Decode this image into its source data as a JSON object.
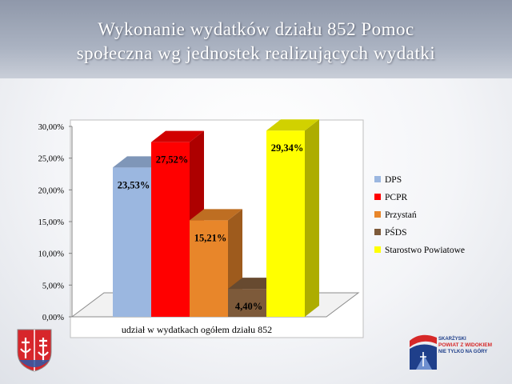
{
  "header": {
    "title_line1": "Wykonanie wydatków działu 852 Pomoc",
    "title_line2": "społeczna wg jednostek realizujących wydatki"
  },
  "logo_right": {
    "line1": "SKARŻYSKI",
    "line2": "POWIAT Z WIDOKIEM",
    "line3": "NIE TYLKO NA GÓRY"
  },
  "chart_data": {
    "type": "bar",
    "title": "",
    "xlabel": "udział w wydatkach ogółem działu 852",
    "ylabel": "",
    "ylim": [
      0,
      30
    ],
    "yticks": [
      "0,00%",
      "5,00%",
      "10,00%",
      "15,00%",
      "20,00%",
      "25,00%",
      "30,00%"
    ],
    "categories": [
      "udział w wydatkach ogółem działu 852"
    ],
    "legend_position": "right",
    "grid": false,
    "series": [
      {
        "name": "DPS",
        "values": [
          23.53
        ],
        "label": "23,53%",
        "color": "#9bb7e0"
      },
      {
        "name": "PCPR",
        "values": [
          27.52
        ],
        "label": "27,52%",
        "color": "#ff0000"
      },
      {
        "name": "Przystań",
        "values": [
          15.21
        ],
        "label": "15,21%",
        "color": "#e8862a"
      },
      {
        "name": "PŚDS",
        "values": [
          4.4
        ],
        "label": "4,40%",
        "color": "#7d5a3a"
      },
      {
        "name": "Starostwo Powiatowe",
        "values": [
          29.34
        ],
        "label": "29,34%",
        "color": "#ffff00"
      }
    ]
  }
}
